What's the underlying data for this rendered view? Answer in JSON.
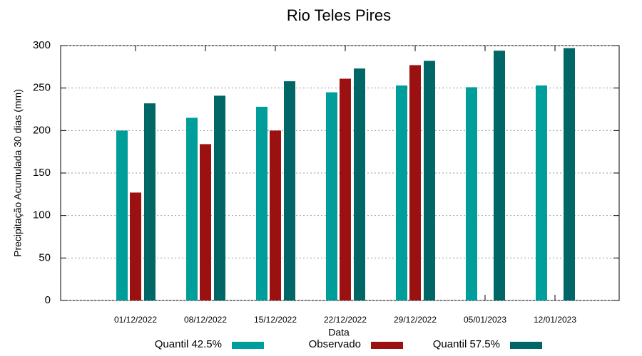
{
  "chart_data": {
    "type": "bar",
    "title": "Rio Teles Pires",
    "x_label": "Data",
    "y_label": "Precipitação Acumulada 30 dias (mm)",
    "categories": [
      "01/12/2022",
      "08/12/2022",
      "15/12/2022",
      "22/12/2022",
      "29/12/2022",
      "05/01/2023",
      "12/01/2023"
    ],
    "series": [
      {
        "name": "Quantil 42.5%",
        "color": "#009e9a",
        "values": [
          200,
          215,
          228,
          245,
          253,
          251,
          253
        ]
      },
      {
        "name": "Observado",
        "color": "#9b1111",
        "values": [
          127,
          184,
          200,
          261,
          277,
          null,
          null
        ]
      },
      {
        "name": "Quantil 57.5%",
        "color": "#006766",
        "values": [
          232,
          241,
          258,
          273,
          282,
          294,
          297
        ]
      }
    ],
    "ylim": [
      0,
      300
    ],
    "yticks": [
      0,
      50,
      100,
      150,
      200,
      250,
      300
    ],
    "grid": true,
    "legend": "bottom"
  }
}
